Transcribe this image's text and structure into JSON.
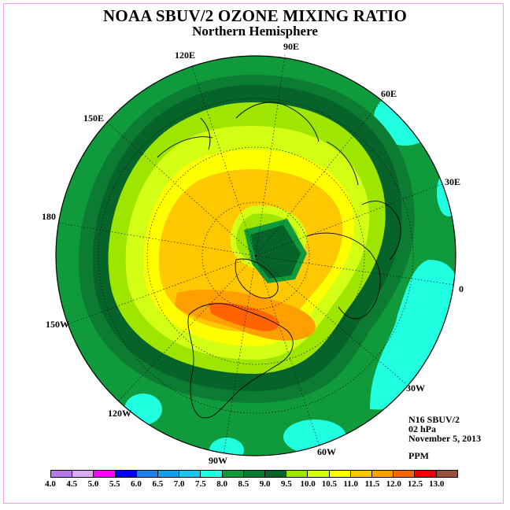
{
  "title": "NOAA SBUV/2 OZONE MIXING RATIO",
  "subtitle": "Northern Hemisphere",
  "longitude_labels": [
    "90E",
    "60E",
    "30E",
    "0",
    "30W",
    "60W",
    "90W",
    "120W",
    "150W",
    "180",
    "150E",
    "120E"
  ],
  "info": {
    "satellite": "N16 SBUV/2",
    "level": "02 hPa",
    "date": "November 5, 2013",
    "units": "PPM"
  },
  "colorbar": {
    "ticks": [
      "4.0",
      "4.5",
      "5.0",
      "5.5",
      "6.0",
      "6.5",
      "7.0",
      "7.5",
      "8.0",
      "8.5",
      "9.0",
      "9.5",
      "10.0",
      "10.5",
      "11.0",
      "11.5",
      "12.0",
      "12.5",
      "13.0"
    ],
    "colors": [
      "#b57ae8",
      "#dcaaf0",
      "#ff00ff",
      "#0000f0",
      "#1e7ff0",
      "#0fa0f0",
      "#14c8f0",
      "#20ffe0",
      "#0f9b3c",
      "#0c7c32",
      "#06642a",
      "#9ee600",
      "#d2ff14",
      "#ffff00",
      "#ffc800",
      "#ffa000",
      "#ff6400",
      "#f00000",
      "#96503c"
    ]
  }
}
